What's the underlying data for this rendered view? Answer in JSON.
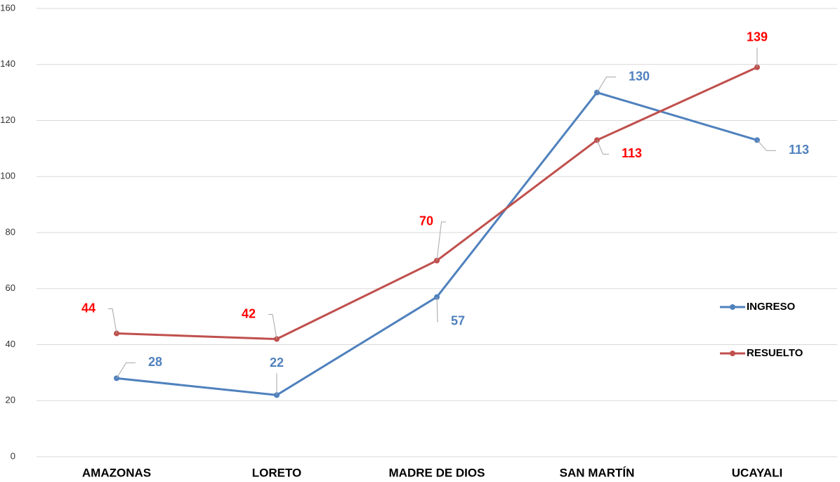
{
  "chart_data": {
    "type": "line",
    "categories": [
      "AMAZONAS",
      "LORETO",
      "MADRE DE DIOS",
      "SAN MARTÍN",
      "UCAYALI"
    ],
    "series": [
      {
        "name": "INGRESO",
        "color": "#4f81bd",
        "label_color": "#4f81bd",
        "values": [
          28,
          22,
          57,
          130,
          113
        ]
      },
      {
        "name": "RESUELTO",
        "color": "#c0504d",
        "label_color": "#ff0000",
        "values": [
          44,
          42,
          70,
          113,
          139
        ]
      }
    ],
    "ylim": [
      0,
      160
    ],
    "yticks": [
      0,
      20,
      40,
      60,
      80,
      100,
      120,
      140,
      160
    ],
    "grid": true,
    "legend": "right"
  }
}
